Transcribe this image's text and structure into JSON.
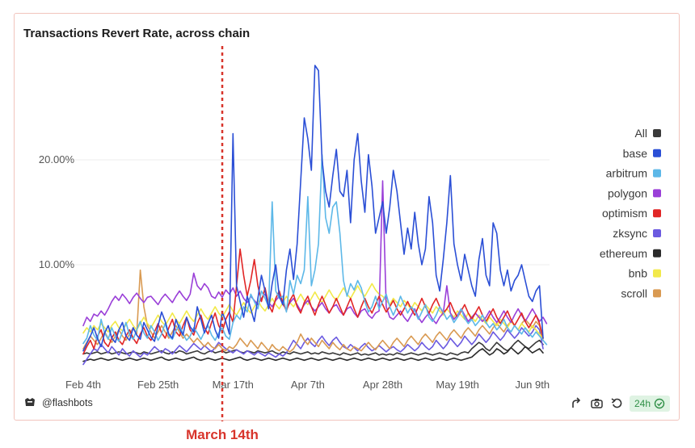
{
  "chart_data": {
    "type": "line",
    "title": "Transactions Revert Rate, across chain",
    "xlabel": "",
    "ylabel": "",
    "x_days": 130,
    "xticks": [
      {
        "label": "Feb 4th",
        "day": 0
      },
      {
        "label": "Feb 25th",
        "day": 21
      },
      {
        "label": "Mar 17th",
        "day": 42
      },
      {
        "label": "Apr 7th",
        "day": 63
      },
      {
        "label": "Apr 28th",
        "day": 84
      },
      {
        "label": "May 19th",
        "day": 105
      },
      {
        "label": "Jun 9th",
        "day": 126
      }
    ],
    "yticks": [
      {
        "label": "20.00%",
        "value": 20
      },
      {
        "label": "10.00%",
        "value": 10
      }
    ],
    "ylim": [
      0,
      30
    ],
    "grid": "horizontal",
    "legend_position": "right",
    "series": [
      {
        "name": "All",
        "color": "#3a3a3a",
        "values": [
          1.5,
          1.6,
          1.5,
          1.6,
          1.7,
          1.5,
          1.6,
          1.7,
          1.5,
          1.6,
          1.7,
          1.6,
          1.5,
          1.6,
          1.7,
          1.6,
          1.5,
          1.7,
          1.6,
          1.5,
          1.6,
          1.7,
          1.8,
          1.6,
          1.5,
          1.7,
          1.6,
          1.8,
          1.7,
          1.5,
          1.6,
          1.7,
          1.8,
          1.6,
          1.5,
          1.7,
          1.8,
          1.6,
          1.7,
          1.8,
          1.6,
          1.7,
          1.8,
          1.9,
          1.7,
          1.6,
          1.8,
          1.7,
          1.6,
          1.8,
          1.7,
          1.6,
          1.7,
          1.8,
          1.6,
          1.5,
          1.7,
          1.6,
          1.5,
          1.7,
          1.6,
          1.5,
          1.6,
          1.7,
          1.5,
          1.6,
          1.5,
          1.7,
          1.6,
          1.5,
          1.6,
          1.5,
          1.4,
          1.6,
          1.5,
          1.4,
          1.5,
          1.6,
          1.4,
          1.5,
          1.4,
          1.5,
          1.6,
          1.4,
          1.5,
          1.4,
          1.5,
          1.4,
          1.6,
          1.5,
          1.4,
          1.5,
          1.6,
          1.5,
          1.4,
          1.5,
          1.6,
          1.5,
          1.4,
          1.5,
          1.6,
          1.5,
          1.4,
          1.6,
          1.5,
          1.4,
          1.6,
          1.7,
          1.6,
          2.0,
          2.3,
          2.6,
          2.4,
          2.0,
          1.8,
          2.2,
          2.6,
          2.3,
          2.0,
          1.8,
          2.1,
          2.5,
          2.8,
          2.5,
          2.2,
          2.0,
          2.3,
          2.6,
          2.8,
          2.4
        ]
      },
      {
        "name": "base",
        "color": "#2b4fd6",
        "values": [
          1.8,
          2.5,
          3.2,
          4.0,
          3.0,
          2.2,
          3.5,
          4.2,
          3.0,
          2.6,
          3.8,
          4.5,
          3.2,
          2.8,
          4.0,
          3.3,
          2.9,
          4.5,
          3.8,
          3.1,
          2.7,
          4.2,
          5.5,
          4.6,
          3.4,
          3.0,
          4.8,
          3.9,
          3.3,
          5.0,
          4.1,
          3.6,
          6.0,
          4.8,
          3.5,
          4.4,
          5.2,
          3.8,
          3.0,
          5.5,
          4.6,
          3.4,
          22.5,
          8.0,
          6.5,
          5.0,
          7.0,
          5.8,
          4.6,
          6.8,
          9.0,
          7.5,
          5.8,
          8.2,
          10.0,
          7.0,
          6.2,
          9.5,
          11.5,
          8.6,
          12.0,
          18.0,
          24.0,
          22.0,
          19.0,
          29.0,
          28.5,
          20.0,
          17.0,
          15.5,
          18.5,
          21.0,
          17.0,
          16.5,
          19.0,
          14.0,
          20.0,
          22.5,
          18.0,
          15.0,
          20.5,
          17.5,
          13.0,
          14.5,
          16.0,
          13.0,
          15.5,
          19.0,
          17.0,
          14.0,
          11.0,
          13.5,
          11.5,
          15.0,
          12.0,
          10.0,
          11.5,
          16.5,
          14.0,
          9.0,
          7.5,
          10.5,
          14.0,
          18.5,
          12.0,
          10.0,
          8.5,
          11.0,
          9.5,
          8.0,
          7.0,
          10.5,
          12.5,
          9.0,
          8.0,
          14.0,
          13.0,
          9.5,
          8.0,
          9.5,
          7.5,
          8.5,
          9.0,
          10.0,
          8.5,
          7.0,
          6.5,
          7.5,
          8.0,
          3.0
        ]
      },
      {
        "name": "arbitrum",
        "color": "#5db8e8",
        "values": [
          2.5,
          3.0,
          4.2,
          3.3,
          2.8,
          4.8,
          3.5,
          2.9,
          4.0,
          3.2,
          2.7,
          3.6,
          4.5,
          3.3,
          2.9,
          3.8,
          4.6,
          3.5,
          3.0,
          4.2,
          3.6,
          2.8,
          3.4,
          4.4,
          3.2,
          2.9,
          3.7,
          4.3,
          3.4,
          2.8,
          3.2,
          4.0,
          3.5,
          2.9,
          3.6,
          4.2,
          3.3,
          2.8,
          3.5,
          4.0,
          3.2,
          2.9,
          4.5,
          5.2,
          4.8,
          6.0,
          5.5,
          7.2,
          6.5,
          5.8,
          7.5,
          6.8,
          6.0,
          16.0,
          7.5,
          6.8,
          7.0,
          5.5,
          8.5,
          7.2,
          9.0,
          8.2,
          9.5,
          16.5,
          8.0,
          9.5,
          12.0,
          20.5,
          14.5,
          13.0,
          15.5,
          16.0,
          13.0,
          8.5,
          7.0,
          8.2,
          7.6,
          8.5,
          7.8,
          6.5,
          5.5,
          6.0,
          7.0,
          5.8,
          6.5,
          7.2,
          6.0,
          5.2,
          6.0,
          7.0,
          6.2,
          5.4,
          6.0,
          5.6,
          4.8,
          5.5,
          6.2,
          5.0,
          4.6,
          5.2,
          6.0,
          5.5,
          4.8,
          5.2,
          4.5,
          5.0,
          5.8,
          4.9,
          4.4,
          4.8,
          4.2,
          4.6,
          5.2,
          4.5,
          4.0,
          4.4,
          3.8,
          4.2,
          4.8,
          4.0,
          3.6,
          4.2,
          3.8,
          3.4,
          4.0,
          3.5,
          3.1,
          3.6,
          3.2,
          2.8,
          2.4
        ]
      },
      {
        "name": "polygon",
        "color": "#9a3fd8",
        "values": [
          4.2,
          5.0,
          4.6,
          5.3,
          5.1,
          5.6,
          5.2,
          5.8,
          6.5,
          7.0,
          6.6,
          7.2,
          6.8,
          6.3,
          6.9,
          7.3,
          6.8,
          6.4,
          6.9,
          7.0,
          6.6,
          6.2,
          6.8,
          7.2,
          6.8,
          6.4,
          7.0,
          7.5,
          7.0,
          6.6,
          7.2,
          9.2,
          8.0,
          7.6,
          8.2,
          7.8,
          7.0,
          6.8,
          7.4,
          6.9,
          7.6,
          7.2,
          7.8,
          7.0,
          7.5,
          6.8,
          6.4,
          7.0,
          6.6,
          6.2,
          6.8,
          7.2,
          6.4,
          6.0,
          6.6,
          7.0,
          6.2,
          5.8,
          6.4,
          6.8,
          6.2,
          5.6,
          6.2,
          6.6,
          6.0,
          5.6,
          6.0,
          6.4,
          5.8,
          5.4,
          6.0,
          6.2,
          5.6,
          5.2,
          5.8,
          6.0,
          5.4,
          5.0,
          5.6,
          5.8,
          5.2,
          4.9,
          5.4,
          5.6,
          18.0,
          6.0,
          5.0,
          4.8,
          5.2,
          5.6,
          5.0,
          4.6,
          5.2,
          5.8,
          5.0,
          4.5,
          5.0,
          5.4,
          4.8,
          4.4,
          5.0,
          5.4,
          8.0,
          5.4,
          4.8,
          5.2,
          5.8,
          5.2,
          4.6,
          5.0,
          5.4,
          5.0,
          4.6,
          5.0,
          5.6,
          5.0,
          4.5,
          5.0,
          5.6,
          5.0,
          4.5,
          5.2,
          5.8,
          5.2,
          4.6,
          5.2,
          5.8,
          5.2,
          4.6,
          5.0,
          4.4
        ]
      },
      {
        "name": "optimism",
        "color": "#e12626",
        "values": [
          1.5,
          2.2,
          2.8,
          2.0,
          3.2,
          3.8,
          2.6,
          2.2,
          3.0,
          3.6,
          2.8,
          2.4,
          3.2,
          3.8,
          3.0,
          2.5,
          3.4,
          4.0,
          3.2,
          2.8,
          3.6,
          4.4,
          3.5,
          3.0,
          4.0,
          4.8,
          3.6,
          3.2,
          4.2,
          5.0,
          3.8,
          3.3,
          4.4,
          5.2,
          4.0,
          3.4,
          4.5,
          5.4,
          4.2,
          3.6,
          4.8,
          5.5,
          4.5,
          8.0,
          11.5,
          9.0,
          7.0,
          8.5,
          10.5,
          8.0,
          6.5,
          7.8,
          6.2,
          5.5,
          6.8,
          7.5,
          6.4,
          5.6,
          6.6,
          7.2,
          6.0,
          5.4,
          6.4,
          7.0,
          6.0,
          5.2,
          6.2,
          7.0,
          6.2,
          5.4,
          6.0,
          6.8,
          6.0,
          5.2,
          6.0,
          6.8,
          5.8,
          5.0,
          6.0,
          6.8,
          6.0,
          5.4,
          6.2,
          7.0,
          6.2,
          5.5,
          6.0,
          6.6,
          5.8,
          5.2,
          5.8,
          6.5,
          5.8,
          5.2,
          6.0,
          6.8,
          6.0,
          5.4,
          6.2,
          6.8,
          6.0,
          5.4,
          5.8,
          6.4,
          5.6,
          5.0,
          5.6,
          6.2,
          5.4,
          4.8,
          5.4,
          6.0,
          5.2,
          4.6,
          5.2,
          5.8,
          5.0,
          4.4,
          5.0,
          5.6,
          4.8,
          4.2,
          4.8,
          5.4,
          4.6,
          4.0,
          4.6,
          5.2,
          4.4,
          3.0
        ]
      },
      {
        "name": "zksync",
        "color": "#6b5ae0",
        "values": [
          0.5,
          1.0,
          1.5,
          2.0,
          1.8,
          2.4,
          2.0,
          1.6,
          2.2,
          1.8,
          1.4,
          2.0,
          1.6,
          1.3,
          1.8,
          1.5,
          1.2,
          1.6,
          1.4,
          1.8,
          2.2,
          1.9,
          1.6,
          2.0,
          1.8,
          1.5,
          1.9,
          2.3,
          2.0,
          1.7,
          2.1,
          2.5,
          2.2,
          1.9,
          2.3,
          2.0,
          1.7,
          2.1,
          2.6,
          2.3,
          2.0,
          1.8,
          1.6,
          1.9,
          1.7,
          1.5,
          1.8,
          1.6,
          1.4,
          1.7,
          1.5,
          1.3,
          1.6,
          1.4,
          1.2,
          1.5,
          1.3,
          1.6,
          2.2,
          2.8,
          2.4,
          2.0,
          2.6,
          3.0,
          2.5,
          2.2,
          2.8,
          3.2,
          2.7,
          2.3,
          2.8,
          3.1,
          2.6,
          2.2,
          2.0,
          2.4,
          2.1,
          1.8,
          2.2,
          2.5,
          2.1,
          1.8,
          2.0,
          2.3,
          2.0,
          1.7,
          2.0,
          2.2,
          1.9,
          1.7,
          2.0,
          2.4,
          2.1,
          1.8,
          2.1,
          2.6,
          2.2,
          1.9,
          2.2,
          2.8,
          2.4,
          2.0,
          2.4,
          3.0,
          2.6,
          2.2,
          2.6,
          3.2,
          2.8,
          2.4,
          2.8,
          3.4,
          3.0,
          2.6,
          3.0,
          3.6,
          3.2,
          2.8,
          3.2,
          3.8,
          3.4,
          3.0,
          3.4,
          4.0,
          3.6,
          3.2,
          3.6,
          4.2,
          3.8,
          2.0
        ]
      },
      {
        "name": "ethereum",
        "color": "#2b2b2b",
        "values": [
          0.8,
          0.9,
          1.0,
          0.9,
          1.0,
          1.1,
          1.0,
          0.9,
          1.0,
          1.1,
          1.0,
          0.9,
          1.0,
          1.1,
          1.0,
          0.9,
          1.0,
          1.1,
          1.0,
          0.9,
          1.0,
          1.1,
          1.2,
          1.0,
          0.9,
          1.0,
          1.1,
          1.0,
          0.9,
          1.0,
          1.1,
          1.2,
          1.0,
          0.9,
          1.0,
          1.1,
          1.0,
          0.9,
          1.0,
          1.1,
          1.0,
          0.9,
          1.0,
          1.1,
          1.2,
          1.0,
          0.9,
          1.0,
          1.1,
          1.0,
          0.9,
          1.0,
          1.1,
          1.0,
          0.9,
          1.0,
          1.1,
          1.0,
          0.9,
          1.0,
          1.1,
          1.0,
          0.9,
          1.0,
          1.1,
          1.0,
          0.9,
          1.0,
          1.1,
          1.0,
          0.9,
          1.0,
          1.1,
          1.0,
          0.9,
          1.0,
          1.1,
          1.0,
          0.9,
          1.0,
          1.1,
          1.0,
          0.9,
          1.0,
          1.1,
          1.0,
          0.9,
          1.0,
          1.1,
          1.0,
          0.9,
          1.0,
          1.1,
          1.0,
          0.9,
          1.0,
          1.1,
          1.0,
          0.9,
          1.0,
          1.1,
          1.0,
          0.9,
          1.0,
          1.1,
          1.0,
          0.9,
          1.0,
          1.1,
          1.2,
          1.5,
          1.8,
          2.0,
          1.7,
          1.4,
          1.6,
          2.0,
          1.8,
          1.5,
          1.7,
          2.1,
          1.8,
          1.5,
          1.8,
          2.2,
          1.9,
          1.6,
          1.8,
          2.0,
          1.6
        ]
      },
      {
        "name": "bnb",
        "color": "#f2e94a",
        "values": [
          3.5,
          4.0,
          3.6,
          4.2,
          3.8,
          4.4,
          4.0,
          3.6,
          4.2,
          4.6,
          4.0,
          3.7,
          4.3,
          4.8,
          4.2,
          3.8,
          4.4,
          5.0,
          4.4,
          4.0,
          4.6,
          5.2,
          4.6,
          4.2,
          4.8,
          5.4,
          4.8,
          4.4,
          5.0,
          5.6,
          5.0,
          4.6,
          5.2,
          5.8,
          5.2,
          4.8,
          5.4,
          6.0,
          5.4,
          5.0,
          5.6,
          6.2,
          5.6,
          5.2,
          5.8,
          6.4,
          5.8,
          5.4,
          6.0,
          6.6,
          6.0,
          5.6,
          6.2,
          6.8,
          6.2,
          5.8,
          6.4,
          7.0,
          6.4,
          6.0,
          6.6,
          7.2,
          6.6,
          6.2,
          6.8,
          7.4,
          6.8,
          6.4,
          7.0,
          7.6,
          7.0,
          6.6,
          7.2,
          7.8,
          7.2,
          6.8,
          7.4,
          8.0,
          7.4,
          7.0,
          7.6,
          8.2,
          7.6,
          7.2,
          7.0,
          6.6,
          6.2,
          6.8,
          6.4,
          6.0,
          6.6,
          6.2,
          5.8,
          6.4,
          6.0,
          5.6,
          6.2,
          5.8,
          5.4,
          6.0,
          5.6,
          5.2,
          5.8,
          5.4,
          5.0,
          5.6,
          5.2,
          4.8,
          5.4,
          5.0,
          4.6,
          5.2,
          4.8,
          4.4,
          5.0,
          4.6,
          4.2,
          4.8,
          4.4,
          4.0,
          4.6,
          4.2,
          3.8,
          4.4,
          4.0,
          3.6,
          4.2,
          3.8,
          3.4,
          3.0
        ]
      },
      {
        "name": "scroll",
        "color": "#d99a52",
        "values": [
          2.0,
          2.6,
          3.2,
          2.8,
          2.4,
          3.0,
          3.6,
          3.0,
          2.6,
          3.2,
          3.8,
          3.2,
          2.8,
          3.4,
          4.0,
          3.4,
          9.5,
          6.0,
          4.2,
          3.6,
          3.0,
          3.6,
          4.2,
          3.6,
          3.0,
          3.6,
          4.2,
          3.6,
          3.0,
          3.4,
          3.0,
          2.6,
          3.0,
          2.6,
          2.2,
          2.6,
          2.2,
          2.0,
          2.4,
          2.0,
          1.8,
          2.2,
          2.0,
          2.4,
          3.0,
          2.6,
          2.2,
          2.8,
          2.4,
          2.0,
          2.6,
          2.2,
          1.8,
          2.4,
          2.0,
          1.8,
          2.2,
          1.9,
          1.7,
          2.0,
          2.6,
          3.4,
          2.8,
          2.4,
          3.0,
          2.6,
          2.2,
          2.8,
          2.4,
          2.0,
          2.6,
          2.2,
          1.9,
          2.4,
          2.0,
          1.8,
          2.2,
          2.0,
          1.8,
          2.2,
          2.6,
          2.2,
          1.9,
          2.4,
          2.8,
          2.4,
          2.0,
          2.6,
          3.0,
          2.6,
          2.2,
          2.8,
          3.2,
          2.8,
          2.4,
          3.0,
          3.4,
          3.0,
          2.6,
          3.2,
          3.6,
          3.2,
          2.8,
          3.4,
          3.8,
          3.4,
          3.0,
          3.6,
          4.0,
          3.6,
          3.2,
          3.8,
          4.2,
          3.8,
          3.4,
          4.0,
          4.4,
          4.0,
          3.6,
          4.2,
          4.6,
          4.2,
          3.8,
          4.4,
          4.8,
          4.4,
          4.0,
          4.6,
          4.2,
          2.8
        ]
      }
    ],
    "annotation": {
      "label": "March 14th",
      "day": 39,
      "color": "#d8342b"
    }
  },
  "footer": {
    "brand_label": "@flashbots",
    "time_badge": "24h"
  },
  "colors": {
    "frame_border": "#f2c4bd",
    "grid": "#ececec",
    "badge_bg": "#dff3e3",
    "badge_fg": "#2f8f46"
  },
  "icons": [
    "flashbots-logo-icon",
    "share-icon",
    "camera-icon",
    "refresh-icon",
    "check-circle-icon"
  ]
}
